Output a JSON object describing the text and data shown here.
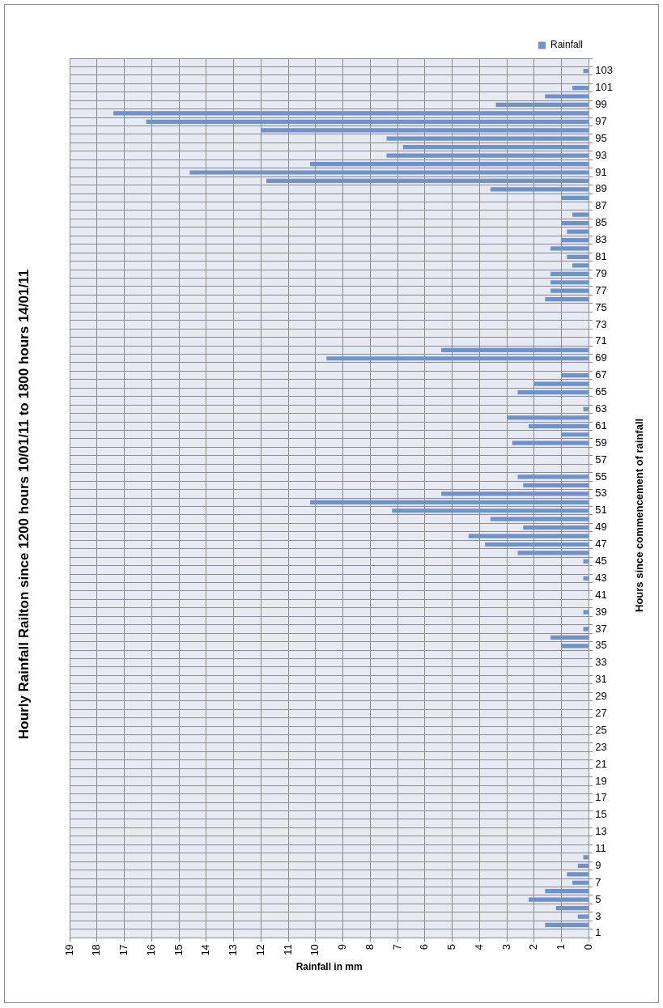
{
  "chart_data": {
    "type": "bar",
    "orientation": "horizontal",
    "title": "Hourly Rainfall Railton since 1200 hours 10/01/11 to 1800 hours 14/01/11",
    "xlabel": "Rainfall in mm",
    "ylabel": "Hours since commencement of rainfall",
    "categories": [
      null,
      "103",
      null,
      "101",
      null,
      "99",
      null,
      "97",
      null,
      "95",
      null,
      "93",
      null,
      "91",
      null,
      "89",
      null,
      "87",
      null,
      "85",
      null,
      "83",
      null,
      "81",
      null,
      "79",
      null,
      "77",
      null,
      "75",
      null,
      "73",
      null,
      "71",
      null,
      "69",
      null,
      "67",
      null,
      "65",
      null,
      "63",
      null,
      "61",
      null,
      "59",
      null,
      "57",
      null,
      "55",
      null,
      "53",
      null,
      "51",
      null,
      "49",
      null,
      "47",
      null,
      "45",
      null,
      "43",
      null,
      "41",
      null,
      "39",
      null,
      "37",
      null,
      "35",
      null,
      "33",
      null,
      "31",
      null,
      "29",
      null,
      "27",
      null,
      "25",
      null,
      "23",
      null,
      "21",
      null,
      "19",
      null,
      "17",
      null,
      "15",
      null,
      "13",
      null,
      "11",
      null,
      "9",
      null,
      "7",
      null,
      "5",
      null,
      "3",
      null,
      "1"
    ],
    "series": [
      {
        "name": "Rainfall",
        "color": "#7092cc",
        "values": [
          0,
          0.2,
          0,
          0.6,
          1.6,
          3.4,
          17.4,
          16.2,
          12.0,
          7.4,
          6.8,
          7.4,
          10.2,
          14.6,
          11.8,
          3.6,
          1.0,
          0,
          0.6,
          1.0,
          0.8,
          1.0,
          1.4,
          0.8,
          0.6,
          1.4,
          1.4,
          1.4,
          1.6,
          0,
          0,
          0,
          0,
          0,
          5.4,
          9.6,
          0,
          1.0,
          2.0,
          2.6,
          0,
          0.2,
          3.0,
          2.2,
          1.0,
          2.8,
          0,
          0,
          0,
          2.6,
          2.4,
          5.4,
          10.2,
          7.2,
          3.6,
          2.4,
          4.4,
          3.8,
          2.6,
          0.2,
          0,
          0.2,
          0,
          0,
          0,
          0.2,
          0,
          0.2,
          1.4,
          1.0,
          0,
          0,
          0,
          0,
          0,
          0,
          0,
          0,
          0,
          0,
          0,
          0,
          0,
          0,
          0,
          0,
          0,
          0,
          0,
          0,
          0,
          0,
          0,
          0,
          0.2,
          0.4,
          0.8,
          0.6,
          1.6,
          2.2,
          1.2,
          0.4,
          1.6,
          0
        ]
      }
    ],
    "xlim": [
      19,
      0
    ],
    "xticks": [
      19,
      18,
      17,
      16,
      15,
      14,
      13,
      12,
      11,
      10,
      9,
      8,
      7,
      6,
      5,
      4,
      3,
      2,
      1,
      0
    ],
    "grid": true,
    "legend": "top right"
  }
}
